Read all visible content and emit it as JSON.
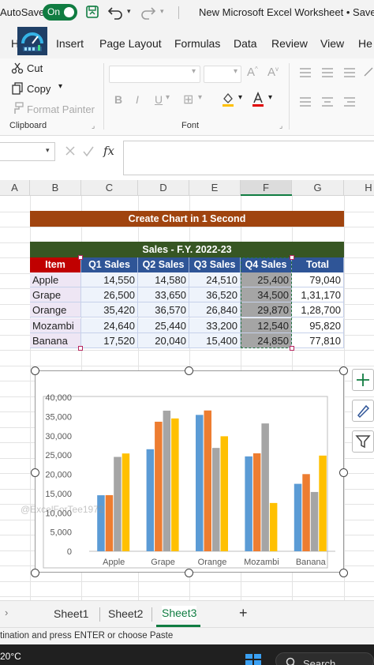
{
  "titlebar": {
    "autosave_label": "AutoSave",
    "toggle_label": "On",
    "title": "New Microsoft Excel Worksheet • Saved"
  },
  "ribbon_tabs": [
    "H",
    "Insert",
    "Page Layout",
    "Formulas",
    "Data",
    "Review",
    "View",
    "He"
  ],
  "clipboard": {
    "cut": "Cut",
    "copy": "Copy",
    "format_painter": "Format Painter",
    "group": "Clipboard"
  },
  "font_group": {
    "group": "Font",
    "bold": "B",
    "italic": "I",
    "underline": "U"
  },
  "formula_bar": {
    "fx": "fx"
  },
  "columns": [
    "A",
    "B",
    "C",
    "D",
    "E",
    "F",
    "G",
    "H"
  ],
  "banner": "Create Chart in 1 Second",
  "table": {
    "band": "Sales - F.Y. 2022-23",
    "headers": [
      "Item",
      "Q1 Sales",
      "Q2 Sales",
      "Q3 Sales",
      "Q4 Sales",
      "Total"
    ],
    "rows": [
      [
        "Apple",
        "14,550",
        "14,580",
        "24,510",
        "25,400",
        "79,040"
      ],
      [
        "Grape",
        "26,500",
        "33,650",
        "36,520",
        "34,500",
        "1,31,170"
      ],
      [
        "Orange",
        "35,420",
        "36,570",
        "26,840",
        "29,870",
        "1,28,700"
      ],
      [
        "Mozambi",
        "24,640",
        "25,440",
        "33,200",
        "12,540",
        "95,820"
      ],
      [
        "Banana",
        "17,520",
        "20,040",
        "15,400",
        "24,850",
        "77,810"
      ]
    ]
  },
  "chart_data": {
    "type": "bar",
    "categories": [
      "Apple",
      "Grape",
      "Orange",
      "Mozambi",
      "Banana"
    ],
    "series": [
      {
        "values": [
          14550,
          26500,
          35420,
          24640,
          17520
        ],
        "color": "#5b9bd5"
      },
      {
        "values": [
          14580,
          33650,
          36570,
          25440,
          20040
        ],
        "color": "#ed7d31"
      },
      {
        "values": [
          24510,
          36520,
          26840,
          33200,
          15400
        ],
        "color": "#a5a5a5"
      },
      {
        "values": [
          25400,
          34500,
          29870,
          12540,
          24850
        ],
        "color": "#ffc000"
      }
    ],
    "ylim": [
      0,
      40000
    ],
    "yticks": [
      "40,000",
      "35,000",
      "30,000",
      "25,000",
      "20,000",
      "15,000",
      "10,000",
      "5,000",
      "0"
    ],
    "grid": false,
    "legend": "none"
  },
  "watermark": "@ExcelForTee1972",
  "sheets": [
    "Sheet1",
    "Sheet2",
    "Sheet3"
  ],
  "add_sheet": "+",
  "status": "tination and press ENTER or choose Paste",
  "taskbar": {
    "temperature": "20°C",
    "search": "Search"
  },
  "colors": {
    "excel_green": "#107c41",
    "banner": "#a0440f",
    "band": "#375623",
    "header_red": "#c00000",
    "header_blue": "#2f5597"
  }
}
